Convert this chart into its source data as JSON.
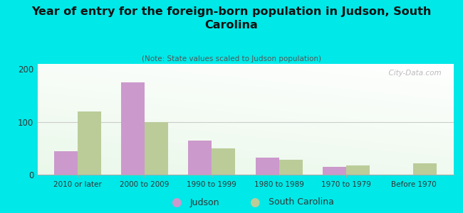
{
  "title": "Year of entry for the foreign-born population in Judson, South\nCarolina",
  "subtitle": "(Note: State values scaled to Judson population)",
  "categories": [
    "2010 or later",
    "2000 to 2009",
    "1990 to 1999",
    "1980 to 1989",
    "1970 to 1979",
    "Before 1970"
  ],
  "judson_values": [
    45,
    175,
    65,
    32,
    15,
    0
  ],
  "sc_values": [
    120,
    100,
    50,
    28,
    18,
    22
  ],
  "judson_color": "#cc99cc",
  "sc_color": "#bbcc99",
  "background_color": "#00e8e8",
  "ylim": [
    0,
    210
  ],
  "yticks": [
    0,
    100,
    200
  ],
  "bar_width": 0.35,
  "watermark": "  City-Data.com",
  "legend_judson": "Judson",
  "legend_sc": "South Carolina"
}
